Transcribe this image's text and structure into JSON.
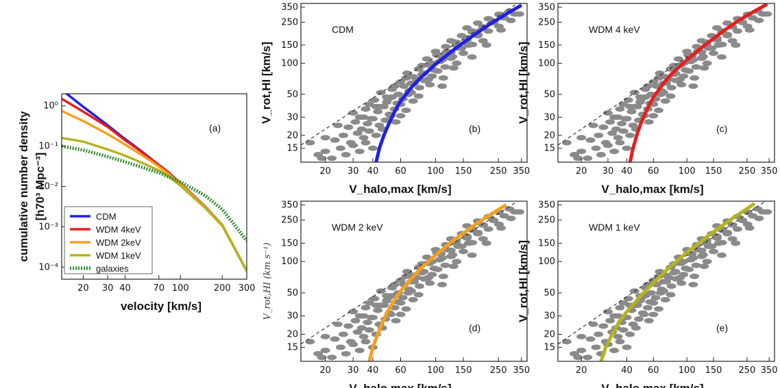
{
  "colors": {
    "CDM": "#1f1fe6",
    "WDM 4keV": "#e61e1e",
    "WDM 2keV": "#f5a01e",
    "WDM 1keV": "#b4b41e",
    "galaxies": "#2e8b2e",
    "points": "#8a8a8a"
  },
  "chart_data": [
    {
      "id": "a",
      "type": "line",
      "annotation": "(a)",
      "xlabel": "velocity [km/s]",
      "ylabel_line1": "cumulative number density",
      "ylabel_line2": "[h70³ Mpc⁻³]",
      "xscale": "log",
      "yscale": "log",
      "xlim": [
        14,
        300
      ],
      "ylim": [
        5e-05,
        2
      ],
      "xticks": [
        20,
        30,
        40,
        70,
        100,
        200,
        300
      ],
      "yticks": [
        {
          "value": 1,
          "label": "10⁰"
        },
        {
          "value": 0.1,
          "label": "10⁻¹"
        },
        {
          "value": 0.01,
          "label": "10⁻²"
        },
        {
          "value": 0.001,
          "label": "10⁻³"
        },
        {
          "value": 0.0001,
          "label": "10⁻⁴"
        }
      ],
      "legend_position": "bottom-left",
      "series": [
        {
          "name": "CDM",
          "x": [
            14,
            20,
            30,
            40,
            50,
            60,
            70,
            80,
            100,
            150,
            200,
            300
          ],
          "y": [
            2.5,
            0.95,
            0.33,
            0.15,
            0.085,
            0.052,
            0.034,
            0.024,
            0.012,
            0.0032,
            0.0011,
            8e-05
          ]
        },
        {
          "name": "WDM 4keV",
          "x": [
            14,
            20,
            30,
            40,
            50,
            60,
            70,
            80,
            100,
            150,
            200,
            300
          ],
          "y": [
            1.5,
            0.72,
            0.3,
            0.14,
            0.082,
            0.051,
            0.034,
            0.024,
            0.012,
            0.0032,
            0.0011,
            8e-05
          ]
        },
        {
          "name": "WDM 2keV",
          "x": [
            14,
            20,
            30,
            40,
            50,
            60,
            70,
            80,
            100,
            150,
            200,
            300
          ],
          "y": [
            0.75,
            0.42,
            0.2,
            0.11,
            0.068,
            0.045,
            0.031,
            0.022,
            0.0115,
            0.0031,
            0.0011,
            8e-05
          ]
        },
        {
          "name": "WDM 1keV",
          "x": [
            14,
            20,
            30,
            40,
            50,
            60,
            70,
            80,
            100,
            150,
            200,
            300
          ],
          "y": [
            0.16,
            0.13,
            0.083,
            0.058,
            0.042,
            0.032,
            0.025,
            0.019,
            0.0105,
            0.003,
            0.00105,
            8e-05
          ]
        },
        {
          "name": "galaxies",
          "x": [
            14,
            20,
            30,
            40,
            50,
            60,
            70,
            80,
            100,
            150,
            200,
            300
          ],
          "y": [
            0.1,
            0.08,
            0.055,
            0.041,
            0.032,
            0.026,
            0.022,
            0.018,
            0.013,
            0.006,
            0.0027,
            0.00045
          ]
        }
      ]
    },
    {
      "id": "b",
      "type": "scatter",
      "annotation": "(b)",
      "label": "CDM",
      "model": "CDM",
      "xlabel": "V_halo,max [km/s]",
      "ylabel": "V_rot,HI [km/s]",
      "xscale": "log",
      "yscale": "log",
      "xlim": [
        14,
        380
      ],
      "ylim": [
        11,
        380
      ],
      "xticks": [
        20,
        30,
        40,
        60,
        100,
        150,
        250,
        350
      ],
      "yticks": [
        15,
        20,
        30,
        50,
        100,
        150,
        250,
        350
      ],
      "curve": {
        "x": [
          42,
          44,
          47,
          50,
          55,
          60,
          70,
          80,
          100,
          130,
          170,
          220,
          280,
          350
        ],
        "y": [
          11,
          15,
          20,
          25,
          34,
          43,
          58,
          72,
          98,
          135,
          182,
          238,
          300,
          365
        ]
      }
    },
    {
      "id": "c",
      "type": "scatter",
      "annotation": "(c)",
      "label": "WDM  4 keV",
      "model": "WDM 4keV",
      "xlabel": "V_halo,max [km/s]",
      "ylabel": "V_rot,HI [km/s]",
      "xscale": "log",
      "yscale": "log",
      "xlim": [
        14,
        380
      ],
      "ylim": [
        11,
        380
      ],
      "xticks": [
        20,
        30,
        40,
        60,
        100,
        150,
        250,
        350
      ],
      "yticks": [
        15,
        20,
        30,
        50,
        100,
        150,
        250,
        350
      ],
      "curve": {
        "x": [
          42,
          44,
          47,
          50,
          55,
          60,
          70,
          80,
          100,
          130,
          170,
          220,
          280,
          340
        ],
        "y": [
          11,
          15,
          21,
          27,
          37,
          47,
          64,
          80,
          108,
          148,
          200,
          260,
          320,
          375
        ]
      }
    },
    {
      "id": "d",
      "type": "scatter",
      "annotation": "(d)",
      "label": "WDM  2 keV",
      "model": "WDM 2keV",
      "xlabel": "V_halo,max [km/s]",
      "ylabel": "V_rot,HI (km s⁻¹)",
      "xscale": "log",
      "yscale": "log",
      "xlim": [
        14,
        380
      ],
      "ylim": [
        11,
        380
      ],
      "xticks": [
        20,
        30,
        40,
        60,
        100,
        150,
        250,
        350
      ],
      "yticks": [
        15,
        20,
        30,
        50,
        100,
        150,
        250,
        350
      ],
      "curve": {
        "x": [
          38,
          40,
          43,
          46,
          50,
          55,
          60,
          70,
          80,
          100,
          130,
          170,
          220,
          280
        ],
        "y": [
          11,
          15,
          20,
          26,
          34,
          43,
          52,
          68,
          85,
          115,
          160,
          215,
          280,
          350
        ]
      }
    },
    {
      "id": "e",
      "type": "scatter",
      "annotation": "(e)",
      "label": "WDM  1 keV",
      "model": "WDM 1keV",
      "xlabel": "V_halo,max [km/s]",
      "ylabel": "V_rot,HI [km/s]",
      "xscale": "log",
      "yscale": "log",
      "xlim": [
        14,
        380
      ],
      "ylim": [
        11,
        380
      ],
      "xticks": [
        20,
        40,
        60,
        100,
        150,
        250,
        350
      ],
      "yticks": [
        15,
        20,
        30,
        50,
        100,
        150,
        250,
        350
      ],
      "curve": {
        "x": [
          27,
          29,
          32,
          36,
          40,
          45,
          50,
          60,
          70,
          85,
          100,
          130,
          170,
          220,
          280
        ],
        "y": [
          11,
          15,
          20,
          27,
          33,
          40,
          48,
          62,
          78,
          100,
          122,
          165,
          220,
          285,
          360
        ]
      }
    }
  ],
  "points": {
    "x": [
      18,
      20,
      22,
      25,
      27,
      30,
      33,
      36,
      40,
      20,
      23,
      26,
      29,
      32,
      35,
      38,
      42,
      46,
      24,
      28,
      31,
      34,
      37,
      40,
      44,
      48,
      52,
      56,
      30,
      33,
      36,
      39,
      43,
      47,
      51,
      55,
      60,
      65,
      38,
      41,
      45,
      49,
      53,
      57,
      62,
      67,
      72,
      78,
      45,
      49,
      53,
      58,
      63,
      68,
      73,
      79,
      85,
      92,
      55,
      60,
      65,
      70,
      76,
      82,
      88,
      95,
      103,
      112,
      66,
      72,
      78,
      84,
      91,
      98,
      106,
      115,
      125,
      136,
      82,
      88,
      95,
      102,
      110,
      118,
      128,
      139,
      150,
      162,
      100,
      108,
      116,
      125,
      135,
      146,
      158,
      171,
      185,
      200,
      125,
      135,
      146,
      158,
      171,
      185,
      200,
      216,
      233,
      252,
      158,
      171,
      185,
      200,
      216,
      233,
      252,
      272,
      294,
      318,
      42,
      50,
      60,
      70,
      90,
      110,
      130,
      170,
      210,
      260,
      300,
      340,
      16,
      19,
      28,
      35
    ],
    "y": [
      13,
      14,
      12,
      15,
      13,
      16,
      14,
      17,
      15,
      19,
      18,
      20,
      17,
      21,
      19,
      22,
      20,
      23,
      25,
      24,
      27,
      23,
      26,
      29,
      25,
      28,
      31,
      27,
      33,
      30,
      36,
      29,
      34,
      38,
      32,
      36,
      40,
      35,
      40,
      44,
      38,
      42,
      47,
      41,
      45,
      50,
      43,
      48,
      52,
      47,
      56,
      50,
      60,
      54,
      64,
      58,
      68,
      62,
      60,
      66,
      72,
      64,
      70,
      78,
      68,
      75,
      84,
      72,
      80,
      74,
      88,
      80,
      96,
      86,
      104,
      92,
      112,
      100,
      95,
      110,
      100,
      120,
      108,
      130,
      116,
      140,
      125,
      150,
      130,
      118,
      145,
      128,
      160,
      140,
      175,
      152,
      190,
      165,
      165,
      150,
      185,
      168,
      205,
      185,
      225,
      205,
      250,
      228,
      220,
      200,
      245,
      225,
      270,
      248,
      298,
      275,
      320,
      300,
      38,
      45,
      31,
      52,
      70,
      60,
      90,
      115,
      150,
      210,
      260,
      300,
      17,
      12,
      24,
      30
    ]
  }
}
